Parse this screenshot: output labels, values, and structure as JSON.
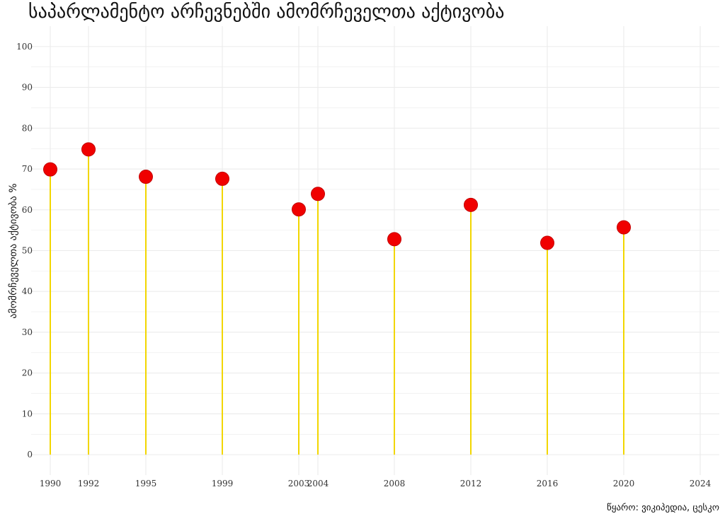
{
  "chart_data": {
    "type": "lollipop",
    "title": "საპარლამენტო არჩევნებში ამომრჩეველთა აქტივობა",
    "xlabel": "",
    "ylabel": "ამომრჩეველთა აქტივობა %",
    "source": "წყარო: ვიკიპედია, ცესკო",
    "xlim": [
      1989,
      2025
    ],
    "ylim": [
      -5,
      105
    ],
    "x_ticks": [
      1990,
      1992,
      1995,
      1999,
      2003,
      2004,
      2008,
      2012,
      2016,
      2020,
      2024
    ],
    "x_tick_labels": [
      "1990",
      "1992",
      "1995",
      "1999",
      "2003",
      "2004",
      "2008",
      "2012",
      "2016",
      "2020",
      "2024"
    ],
    "y_ticks": [
      0,
      10,
      20,
      30,
      40,
      50,
      60,
      70,
      80,
      90,
      100
    ],
    "y_tick_labels": [
      "0",
      "10",
      "20",
      "30",
      "40",
      "50",
      "60",
      "70",
      "80",
      "90",
      "100"
    ],
    "x": [
      1990,
      1992,
      1995,
      1999,
      2003,
      2004,
      2008,
      2012,
      2016,
      2020
    ],
    "values": [
      69.9,
      74.8,
      68.1,
      67.6,
      60.1,
      63.9,
      52.8,
      61.2,
      51.9,
      55.7
    ],
    "grid": true,
    "legend": "none",
    "colors": {
      "stem": "#f2d600",
      "point": "#f00000",
      "point_outline": "#c40000",
      "grid": "#ebebeb"
    }
  }
}
